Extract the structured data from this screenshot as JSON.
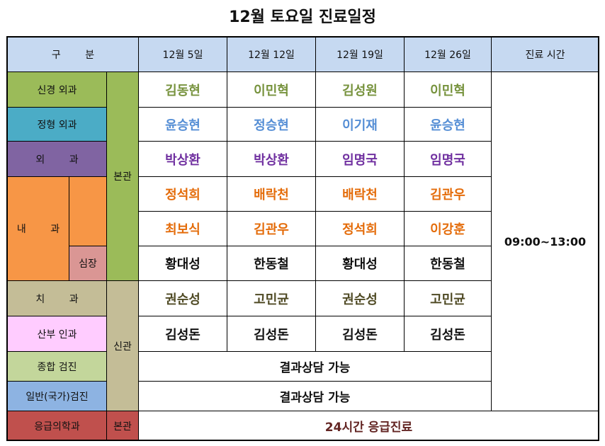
{
  "title": "12월 토요일 진료일정",
  "table": {
    "header": [
      "구 분",
      "12월 5일",
      "12월 12일",
      "12월 19일",
      "12월 26일",
      "진료 시간"
    ],
    "departments": [
      "신경 외과",
      "정형 외과",
      "외 과",
      "내 과",
      "심장",
      "치 과",
      "산부 인과",
      "종합 검진",
      "일반(국가)검진",
      "응급의학과"
    ],
    "buildings": [
      "본관",
      "신관",
      "본관"
    ],
    "schedule": [
      [
        "김동현",
        "이민혁",
        "김성원",
        "이민혁"
      ],
      [
        "윤승현",
        "정승현",
        "이기재",
        "윤승현"
      ],
      [
        "박상환",
        "박상환",
        "임명국",
        "임명국"
      ],
      [
        "정석희",
        "배락천",
        "배락천",
        "김관우"
      ],
      [
        "최보식",
        "김관우",
        "정석희",
        "이강훈"
      ],
      [
        "황대성",
        "한동철",
        "황대성",
        "한동철"
      ],
      [
        "권순성",
        "고민균",
        "권순성",
        "고민균"
      ],
      [
        "김성돈",
        "김성돈",
        "김성돈",
        "김성돈"
      ]
    ],
    "hours": "09:00~13:00",
    "notes": [
      "결과상담 가능",
      "결과상담 가능",
      "24시간 응급진료"
    ]
  }
}
